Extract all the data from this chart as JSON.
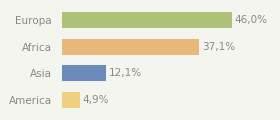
{
  "categories": [
    "Europa",
    "Africa",
    "Asia",
    "America"
  ],
  "values": [
    46.0,
    37.1,
    12.1,
    4.9
  ],
  "bar_colors": [
    "#adc178",
    "#e8b87a",
    "#6b8cba",
    "#f0d080"
  ],
  "labels": [
    "46,0%",
    "37,1%",
    "12,1%",
    "4,9%"
  ],
  "xlim": [
    0,
    50
  ],
  "background_color": "#f5f5f0",
  "label_fontsize": 7.5,
  "category_fontsize": 7.5,
  "bar_height": 0.6,
  "text_color": "#888888"
}
